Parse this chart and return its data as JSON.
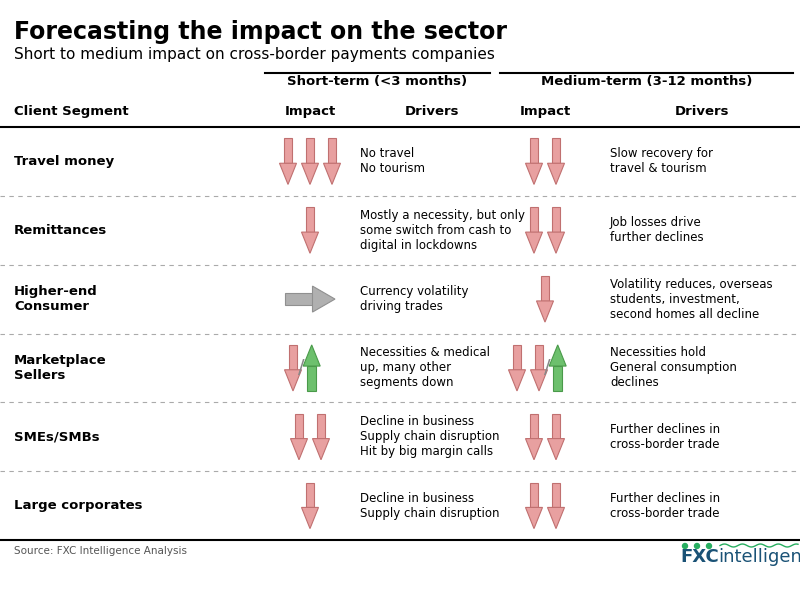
{
  "title": "Forecasting the impact on the sector",
  "subtitle": "Short to medium impact on cross-border payments companies",
  "header_short": "Short-term (<3 months)",
  "header_medium": "Medium-term (3-12 months)",
  "col_impact": "Impact",
  "col_drivers": "Drivers",
  "col_segment": "Client Segment",
  "source": "Source: FXC Intelligence Analysis",
  "bg_color": "#ffffff",
  "title_color": "#000000",
  "rows": [
    {
      "segment": "Travel money",
      "short_arrows": [
        {
          "dir": "down",
          "color": "#e8a0a0"
        },
        {
          "dir": "down",
          "color": "#e8a0a0"
        },
        {
          "dir": "down",
          "color": "#e8a0a0"
        }
      ],
      "short_slash": false,
      "short_driver": "No travel\nNo tourism",
      "medium_arrows": [
        {
          "dir": "down",
          "color": "#e8a0a0"
        },
        {
          "dir": "down",
          "color": "#e8a0a0"
        }
      ],
      "medium_slash": false,
      "medium_driver": "Slow recovery for\ntravel & tourism"
    },
    {
      "segment": "Remittances",
      "short_arrows": [
        {
          "dir": "down",
          "color": "#e8a0a0"
        }
      ],
      "short_slash": false,
      "short_driver": "Mostly a necessity, but only\nsome switch from cash to\ndigital in lockdowns",
      "medium_arrows": [
        {
          "dir": "down",
          "color": "#e8a0a0"
        },
        {
          "dir": "down",
          "color": "#e8a0a0"
        }
      ],
      "medium_slash": false,
      "medium_driver": "Job losses drive\nfurther declines"
    },
    {
      "segment": "Higher-end\nConsumer",
      "short_arrows": [
        {
          "dir": "right",
          "color": "#b0b0b0"
        }
      ],
      "short_slash": false,
      "short_driver": "Currency volatility\ndriving trades",
      "medium_arrows": [
        {
          "dir": "down",
          "color": "#e8a0a0"
        }
      ],
      "medium_slash": false,
      "medium_driver": "Volatility reduces, overseas\nstudents, investment,\nsecond homes all decline"
    },
    {
      "segment": "Marketplace\nSellers",
      "short_arrows": [
        {
          "dir": "down",
          "color": "#e8a0a0"
        },
        {
          "dir": "up",
          "color": "#6dc06d"
        }
      ],
      "short_slash": true,
      "short_driver": "Necessities & medical\nup, many other\nsegments down",
      "medium_arrows": [
        {
          "dir": "down",
          "color": "#e8a0a0"
        },
        {
          "dir": "down",
          "color": "#e8a0a0"
        },
        {
          "dir": "up",
          "color": "#6dc06d"
        }
      ],
      "medium_slash": true,
      "medium_driver": "Necessities hold\nGeneral consumption\ndeclines"
    },
    {
      "segment": "SMEs/SMBs",
      "short_arrows": [
        {
          "dir": "down",
          "color": "#e8a0a0"
        },
        {
          "dir": "down",
          "color": "#e8a0a0"
        }
      ],
      "short_slash": false,
      "short_driver": "Decline in business\nSupply chain disruption\nHit by big margin calls",
      "medium_arrows": [
        {
          "dir": "down",
          "color": "#e8a0a0"
        },
        {
          "dir": "down",
          "color": "#e8a0a0"
        }
      ],
      "medium_slash": false,
      "medium_driver": "Further declines in\ncross-border trade"
    },
    {
      "segment": "Large corporates",
      "short_arrows": [
        {
          "dir": "down",
          "color": "#e8a0a0"
        }
      ],
      "short_slash": false,
      "short_driver": "Decline in business\nSupply chain disruption",
      "medium_arrows": [
        {
          "dir": "down",
          "color": "#e8a0a0"
        },
        {
          "dir": "down",
          "color": "#e8a0a0"
        }
      ],
      "medium_slash": false,
      "medium_driver": "Further declines in\ncross-border trade"
    }
  ],
  "arrow_down_color_edge": "#c07070",
  "arrow_up_color_edge": "#4a9a4a",
  "arrow_right_color_edge": "#909090",
  "dashed_color": "#aaaaaa",
  "header_line_color": "#000000",
  "table_line_color": "#000000"
}
